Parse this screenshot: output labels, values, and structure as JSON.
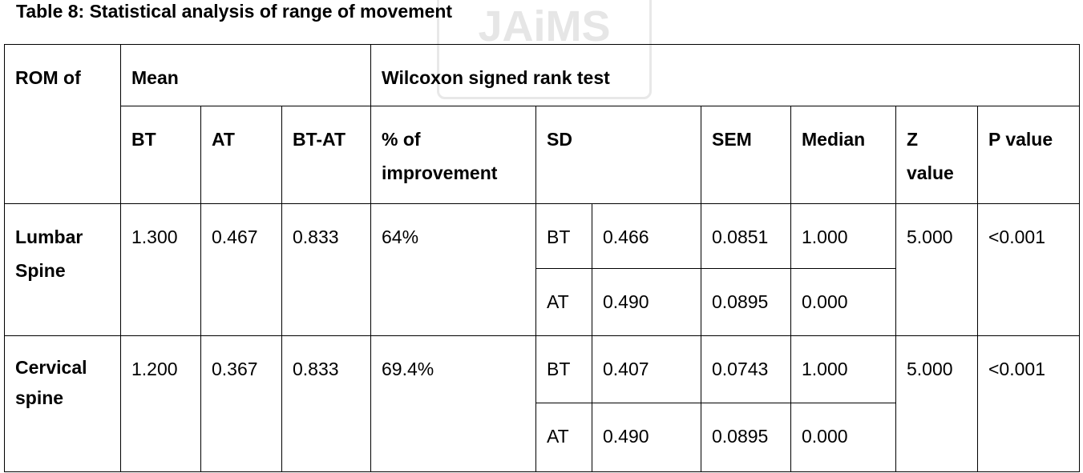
{
  "title": "Table 8: Statistical analysis of range of movement",
  "watermark": "JAiMS",
  "table": {
    "header": [
      [
        "ROM of",
        "Mean",
        "Wilcoxon signed rank test"
      ],
      [
        "BT",
        "AT",
        "BT-AT",
        "% of improvement",
        "SD",
        "SEM",
        "Median",
        "Z value",
        "P value"
      ]
    ],
    "rows": [
      [
        "Lumbar Spine",
        "1.300",
        "0.467",
        "0.833",
        "64%",
        "BT",
        "0.466",
        "0.0851",
        "1.000",
        "5.000",
        "<0.001"
      ],
      [
        "AT",
        "0.490",
        "0.0895",
        "0.000"
      ],
      [
        "Cervical spine",
        "1.200",
        "0.367",
        "0.833",
        "69.4%",
        "BT",
        "0.407",
        "0.0743",
        "1.000",
        "5.000",
        "<0.001"
      ],
      [
        "AT",
        "0.490",
        "0.0895",
        "0.000"
      ]
    ]
  }
}
